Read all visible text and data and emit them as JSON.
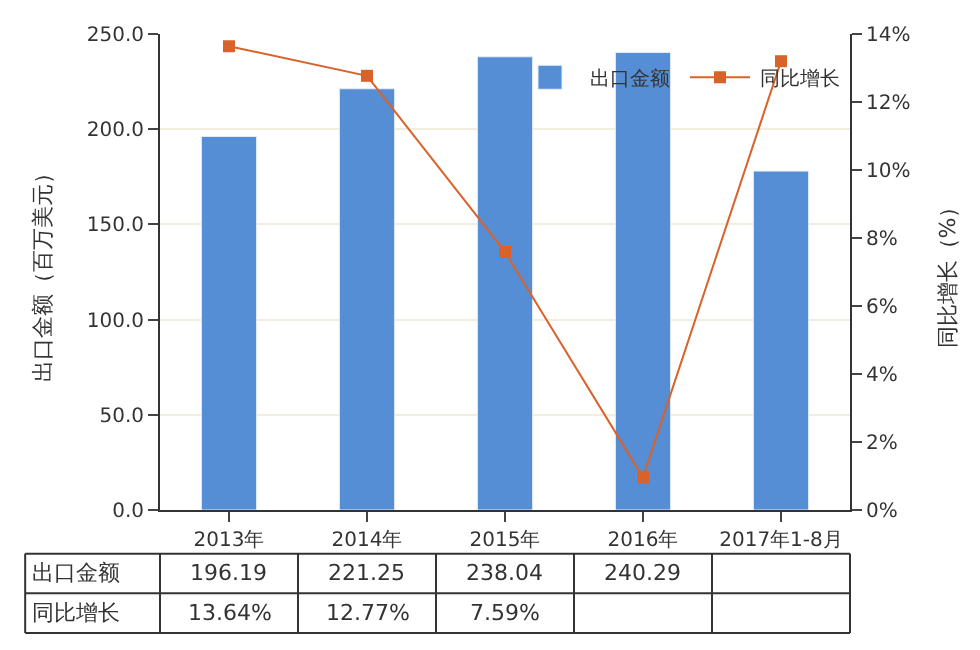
{
  "chart_data": {
    "type": "bar",
    "ylabel": "出口金额（百万美元）",
    "y2label": "同比增长（%）",
    "categories": [
      "2013年",
      "2014年",
      "2015年",
      "2016年",
      "2017年1-8月"
    ],
    "series": [
      {
        "name": "出口金额",
        "color": "#558ed5",
        "values": [
          196.19,
          221.25,
          238.04,
          240.29,
          178
        ],
        "value_labels": [
          "196.19",
          "221.25",
          "238.04",
          "240.29",
          null
        ]
      },
      {
        "name": "同比增长",
        "type": "line",
        "axis": "y2",
        "color": "#d9622b",
        "values": [
          13.64,
          12.77,
          7.59,
          0.96,
          13.2
        ],
        "value_labels": [
          "13.64%",
          "12.77%",
          "7.59%",
          null,
          null
        ],
        "marker": "square",
        "line_style": "solid"
      }
    ],
    "ylim": [
      0,
      250
    ],
    "yticks": [
      {
        "value": 0,
        "label": "0.0"
      },
      {
        "value": 50,
        "label": "50.0"
      },
      {
        "value": 100,
        "label": "100.0"
      },
      {
        "value": 150,
        "label": "150.0"
      },
      {
        "value": 200,
        "label": "200.0"
      },
      {
        "value": 250,
        "label": "250.0"
      }
    ],
    "y2lim": [
      0,
      14
    ],
    "y2ticks": [
      {
        "value": 0,
        "label": "0%"
      },
      {
        "value": 2,
        "label": "2%"
      },
      {
        "value": 4,
        "label": "4%"
      },
      {
        "value": 6,
        "label": "6%"
      },
      {
        "value": 8,
        "label": "8%"
      },
      {
        "value": 10,
        "label": "10%"
      },
      {
        "value": 12,
        "label": "12%"
      },
      {
        "value": 14,
        "label": "14%"
      }
    ],
    "grid": "y",
    "legend": "top right"
  }
}
